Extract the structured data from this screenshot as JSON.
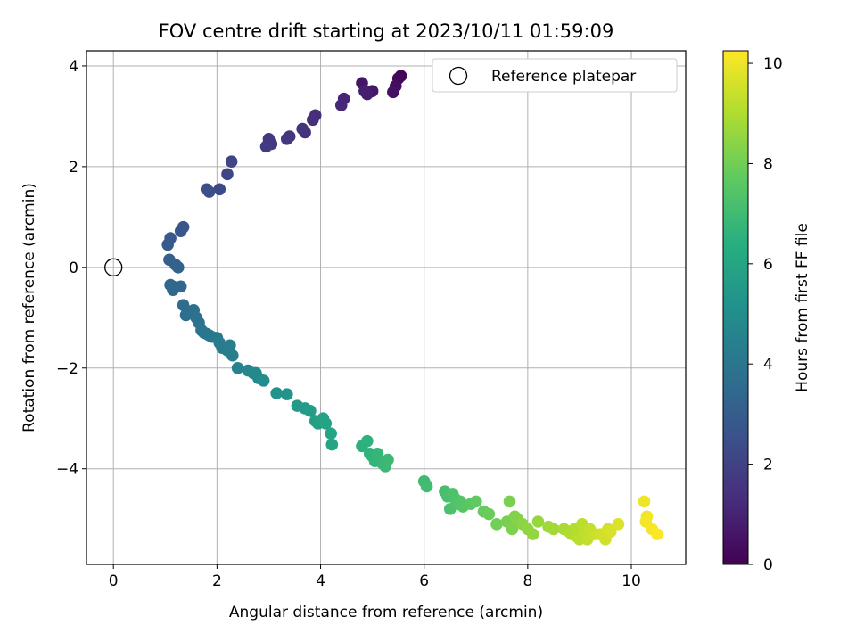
{
  "chart_data": {
    "type": "scatter",
    "title": "FOV centre drift starting at 2023/10/11 01:59:09",
    "xlabel": "Angular distance from reference (arcmin)",
    "ylabel": "Rotation from reference (arcmin)",
    "xlim": [
      -0.52,
      11.05
    ],
    "ylim": [
      -5.9,
      4.3
    ],
    "xticks": [
      0,
      2,
      4,
      6,
      8,
      10
    ],
    "xtick_labels": [
      "0",
      "2",
      "4",
      "6",
      "8",
      "10"
    ],
    "yticks": [
      -4,
      -2,
      0,
      2,
      4
    ],
    "ytick_labels": [
      "−4",
      "−2",
      "0",
      "2",
      "4"
    ],
    "grid": true,
    "legend": {
      "placement": "top-right",
      "entries": [
        "Reference platepar"
      ]
    },
    "reference_point": {
      "name": "Reference platepar",
      "x": 0,
      "y": 0
    },
    "colorbar": {
      "label": "Hours from first FF file",
      "colormap": "viridis",
      "range": [
        0,
        10.25
      ],
      "ticks": [
        0,
        2,
        4,
        6,
        8,
        10
      ],
      "tick_labels": [
        "0",
        "2",
        "4",
        "6",
        "8",
        "10"
      ]
    },
    "series": [
      {
        "x": [
          5.55,
          5.5,
          5.45,
          5.4,
          5.0,
          4.9,
          4.8,
          4.85,
          4.45,
          4.4,
          3.9,
          3.85,
          3.7,
          3.65,
          3.4,
          3.35,
          3.05,
          3.0,
          2.95,
          2.28,
          2.2,
          2.05,
          1.85,
          1.8,
          1.35,
          1.3,
          1.1,
          1.05,
          1.08,
          1.1,
          1.2,
          1.15,
          1.25,
          1.15,
          1.3,
          1.35,
          1.4,
          1.45,
          1.55,
          1.6,
          1.65,
          1.7,
          1.75,
          1.8,
          1.85,
          1.9,
          2.0,
          2.05,
          2.1,
          2.2,
          2.25,
          2.3,
          2.4,
          2.6,
          2.7,
          2.75,
          2.8,
          2.9,
          3.15,
          3.35,
          3.55,
          3.7,
          3.8,
          3.9,
          3.95,
          4.05,
          4.1,
          4.2,
          4.22,
          4.8,
          4.9,
          4.95,
          5.0,
          5.05,
          5.1,
          5.2,
          5.25,
          5.3,
          6.0,
          6.05,
          6.4,
          6.45,
          6.5,
          6.55,
          6.6,
          6.65,
          6.7,
          6.75,
          6.9,
          7.0,
          7.15,
          7.25,
          7.4,
          7.6,
          7.65,
          7.7,
          7.75,
          7.8,
          7.9,
          8.0,
          8.1,
          8.2,
          8.4,
          8.5,
          8.7,
          8.8,
          8.85,
          8.9,
          8.95,
          9.0,
          9.05,
          9.1,
          9.15,
          9.2,
          9.3,
          9.4,
          9.5,
          9.55,
          9.6,
          9.75,
          10.25,
          10.3,
          10.28,
          10.4,
          10.5
        ],
        "y": [
          3.8,
          3.75,
          3.6,
          3.48,
          3.5,
          3.44,
          3.66,
          3.5,
          3.35,
          3.22,
          3.02,
          2.93,
          2.68,
          2.75,
          2.6,
          2.55,
          2.45,
          2.55,
          2.4,
          2.1,
          1.85,
          1.55,
          1.5,
          1.55,
          0.8,
          0.72,
          0.58,
          0.45,
          0.15,
          -0.35,
          0.05,
          -0.45,
          0.0,
          -0.38,
          -0.38,
          -0.75,
          -0.95,
          -0.88,
          -0.85,
          -1.0,
          -1.1,
          -1.25,
          -1.3,
          -1.32,
          -1.35,
          -1.38,
          -1.4,
          -1.5,
          -1.6,
          -1.65,
          -1.55,
          -1.75,
          -2.0,
          -2.05,
          -2.1,
          -2.1,
          -2.2,
          -2.25,
          -2.5,
          -2.52,
          -2.75,
          -2.8,
          -2.85,
          -3.05,
          -3.1,
          -3.0,
          -3.1,
          -3.3,
          -3.52,
          -3.55,
          -3.45,
          -3.7,
          -3.75,
          -3.85,
          -3.7,
          -3.9,
          -3.95,
          -3.82,
          -4.25,
          -4.35,
          -4.45,
          -4.55,
          -4.8,
          -4.5,
          -4.6,
          -4.7,
          -4.65,
          -4.75,
          -4.7,
          -4.65,
          -4.85,
          -4.9,
          -5.1,
          -5.05,
          -4.65,
          -5.2,
          -4.95,
          -5.0,
          -5.1,
          -5.2,
          -5.3,
          -5.05,
          -5.15,
          -5.2,
          -5.2,
          -5.25,
          -5.3,
          -5.2,
          -5.35,
          -5.4,
          -5.1,
          -5.3,
          -5.4,
          -5.2,
          -5.3,
          -5.3,
          -5.4,
          -5.2,
          -5.25,
          -5.1,
          -4.65,
          -4.95,
          -5.05,
          -5.2,
          -5.3
        ],
        "hours": [
          0.1,
          0.2,
          0.35,
          0.5,
          0.65,
          0.8,
          0.6,
          0.9,
          1.05,
          1.15,
          1.3,
          1.35,
          1.45,
          1.5,
          1.55,
          1.6,
          1.7,
          1.65,
          1.75,
          2.1,
          2.15,
          2.3,
          2.4,
          2.45,
          2.7,
          2.75,
          2.85,
          2.9,
          3.1,
          3.35,
          3.2,
          3.4,
          3.25,
          3.45,
          3.5,
          3.6,
          3.65,
          3.7,
          3.75,
          3.8,
          3.85,
          3.9,
          3.95,
          4.0,
          4.05,
          4.1,
          4.15,
          4.2,
          4.25,
          4.3,
          4.35,
          4.4,
          4.5,
          4.7,
          4.75,
          4.8,
          4.85,
          4.9,
          5.15,
          5.25,
          5.5,
          5.55,
          5.6,
          5.75,
          5.8,
          5.85,
          5.9,
          5.95,
          6.0,
          6.5,
          6.55,
          6.6,
          6.65,
          6.7,
          6.75,
          6.8,
          6.85,
          6.9,
          7.0,
          7.05,
          7.15,
          7.2,
          7.25,
          7.3,
          7.35,
          7.4,
          7.45,
          7.5,
          7.6,
          7.7,
          7.8,
          7.9,
          8.0,
          8.1,
          8.15,
          8.2,
          8.25,
          8.3,
          8.4,
          8.5,
          8.55,
          8.6,
          8.75,
          8.8,
          8.9,
          8.95,
          9.0,
          9.05,
          9.1,
          9.15,
          9.2,
          9.25,
          9.3,
          9.35,
          9.45,
          9.5,
          9.55,
          9.6,
          9.65,
          9.7,
          10.0,
          10.05,
          10.1,
          10.15,
          10.2
        ]
      }
    ]
  }
}
